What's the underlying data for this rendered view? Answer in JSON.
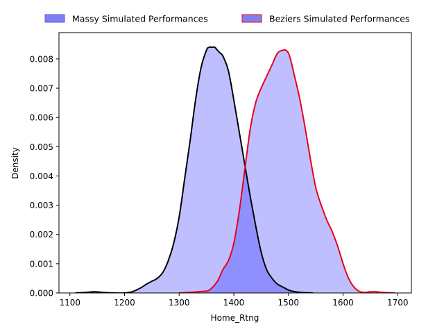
{
  "chart_data": {
    "type": "area",
    "title": "",
    "xlabel": "Home_Rtng",
    "ylabel": "Density",
    "xlim": [
      1080,
      1725
    ],
    "ylim": [
      0,
      0.0089
    ],
    "xticks": [
      1100,
      1200,
      1300,
      1400,
      1500,
      1600,
      1700
    ],
    "xtick_labels": [
      "1100",
      "1200",
      "1300",
      "1400",
      "1500",
      "1600",
      "1700"
    ],
    "yticks": [
      0,
      0.001,
      0.002,
      0.003,
      0.004,
      0.005,
      0.006,
      0.007,
      0.008
    ],
    "ytick_labels": [
      "0.000",
      "0.001",
      "0.002",
      "0.003",
      "0.004",
      "0.005",
      "0.006",
      "0.007",
      "0.008"
    ],
    "grid": false,
    "legend_position": "top-center (above plot)",
    "series": [
      {
        "name": "Massy Simulated Performances",
        "fill_color": "#bdbdff",
        "line_color": "#000000",
        "legend_face": "#7f7ff2",
        "legend_edge": "#5a5ad0",
        "x": [
          1110,
          1130,
          1145,
          1160,
          1180,
          1200,
          1215,
          1230,
          1240,
          1250,
          1260,
          1270,
          1280,
          1290,
          1300,
          1310,
          1320,
          1330,
          1340,
          1350,
          1355,
          1360,
          1365,
          1370,
          1375,
          1380,
          1390,
          1400,
          1410,
          1420,
          1430,
          1440,
          1450,
          1460,
          1470,
          1480,
          1490,
          1500,
          1510,
          1520,
          1530,
          1545
        ],
        "y": [
          0,
          2e-05,
          4e-05,
          2e-05,
          0,
          0,
          5e-05,
          0.00018,
          0.0003,
          0.0004,
          0.0005,
          0.0007,
          0.0011,
          0.0017,
          0.0026,
          0.0039,
          0.0052,
          0.0066,
          0.0077,
          0.0083,
          0.0084,
          0.0084,
          0.0084,
          0.0083,
          0.0082,
          0.0081,
          0.0076,
          0.0066,
          0.0055,
          0.0044,
          0.0033,
          0.0023,
          0.0014,
          0.0008,
          0.0005,
          0.0003,
          0.0002,
          0.0001,
          5e-05,
          2e-05,
          1e-05,
          0
        ]
      },
      {
        "name": "Beziers Simulated Performances",
        "fill_color": "#bdbdff",
        "line_color": "#e8001c",
        "legend_face": "#7f7ff2",
        "legend_edge": "#ff0000",
        "x": [
          1300,
          1320,
          1340,
          1355,
          1370,
          1380,
          1390,
          1400,
          1410,
          1420,
          1430,
          1440,
          1450,
          1460,
          1470,
          1480,
          1490,
          1495,
          1500,
          1505,
          1510,
          1520,
          1530,
          1540,
          1550,
          1560,
          1570,
          1580,
          1590,
          1600,
          1610,
          1620,
          1630,
          1640,
          1650,
          1660,
          1670,
          1680,
          1695
        ],
        "y": [
          0,
          2e-05,
          5e-05,
          0.0001,
          0.0004,
          0.0008,
          0.0011,
          0.0017,
          0.0028,
          0.0042,
          0.0056,
          0.0065,
          0.007,
          0.0074,
          0.0078,
          0.0082,
          0.0083,
          0.0083,
          0.0082,
          0.0079,
          0.0075,
          0.0067,
          0.0057,
          0.0046,
          0.0036,
          0.003,
          0.0025,
          0.0021,
          0.0016,
          0.001,
          0.0005,
          0.0002,
          5e-05,
          2e-05,
          4e-05,
          4e-05,
          2e-05,
          1e-05,
          0
        ]
      }
    ]
  }
}
